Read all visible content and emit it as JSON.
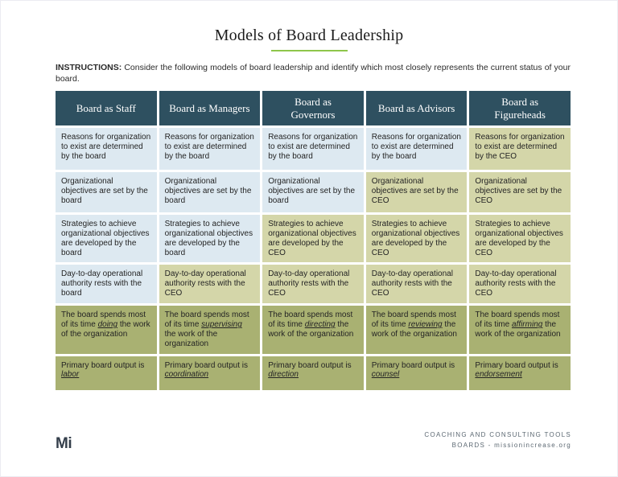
{
  "colors": {
    "header_bg": "#2e5060",
    "cell_blue": "#dde9f1",
    "cell_olive": "#d4d6a9",
    "cell_dark_olive": "#a9b172",
    "divider_green": "#8ec64a",
    "title_color": "#1b1b1b",
    "text_dark": "#242424",
    "header_text": "#ffffff",
    "logo_color": "#333e4a",
    "footer_text": "#5d6973"
  },
  "page": {
    "title": "Models of Board Leadership",
    "instructions_label": "INSTRUCTIONS:",
    "instructions_text": " Consider the following models of board leadership and identify which most closely represents the current status of your board."
  },
  "table": {
    "headers": [
      "Board as Staff",
      "Board as Managers",
      "Board as Governors",
      "Board as Advisors",
      "Board as Figureheads"
    ],
    "rows": [
      {
        "cells": [
          {
            "pre": "Reasons for organization to exist are determined by the board"
          },
          {
            "pre": "Reasons for organization to exist are determined by the board"
          },
          {
            "pre": "Reasons for organization to exist are determined by the board"
          },
          {
            "pre": "Reasons for organization to exist are determined by the board"
          },
          {
            "pre": "Reasons for organization to exist are determined by the CEO"
          }
        ]
      },
      {
        "cells": [
          {
            "pre": "Organizational objectives are set by the board"
          },
          {
            "pre": "Organizational objectives are set by the board"
          },
          {
            "pre": "Organizational objectives are set by the board"
          },
          {
            "pre": "Organizational objectives are set by the CEO"
          },
          {
            "pre": "Organizational objectives are set by the CEO"
          }
        ]
      },
      {
        "cells": [
          {
            "pre": "Strategies to achieve organizational objectives are developed by the board"
          },
          {
            "pre": "Strategies to achieve organizational objectives are developed by the board"
          },
          {
            "pre": "Strategies to achieve organizational objectives are developed by the CEO"
          },
          {
            "pre": "Strategies to achieve organizational objectives are developed by the CEO"
          },
          {
            "pre": "Strategies to achieve organizational objectives are developed by the CEO"
          }
        ]
      },
      {
        "cells": [
          {
            "pre": "Day-to-day operational authority rests with the board"
          },
          {
            "pre": "Day-to-day operational authority rests with the CEO"
          },
          {
            "pre": "Day-to-day operational authority rests with the CEO"
          },
          {
            "pre": "Day-to-day operational authority rests with the CEO"
          },
          {
            "pre": "Day-to-day operational authority rests with the CEO"
          }
        ]
      },
      {
        "cells": [
          {
            "pre": "The board spends most of its time ",
            "em": "doing",
            "post": " the work of the organization"
          },
          {
            "pre": "The board spends most of its time ",
            "em": "supervising",
            "post": " the work of the organization"
          },
          {
            "pre": "The board spends most of its time ",
            "em": "directing",
            "post": " the work of the organization"
          },
          {
            "pre": "The board spends most of its time ",
            "em": "reviewing",
            "post": " the work of the organization"
          },
          {
            "pre": "The board spends most of its time ",
            "em": "affirming",
            "post": " the work of the organization"
          }
        ]
      },
      {
        "cells": [
          {
            "pre": "Primary board output is ",
            "em": "labor",
            "post": ""
          },
          {
            "pre": "Primary board output is ",
            "em": "coordination",
            "post": ""
          },
          {
            "pre": "Primary board output is ",
            "em": "direction",
            "post": ""
          },
          {
            "pre": "Primary board output is ",
            "em": "counsel",
            "post": ""
          },
          {
            "pre": "Primary board output is ",
            "em": "endorsement",
            "post": ""
          }
        ]
      }
    ]
  },
  "footer": {
    "logo": "Mi",
    "line1": "COACHING AND CONSULTING TOOLS",
    "line2": "BOARDS - missionincrease.org"
  }
}
